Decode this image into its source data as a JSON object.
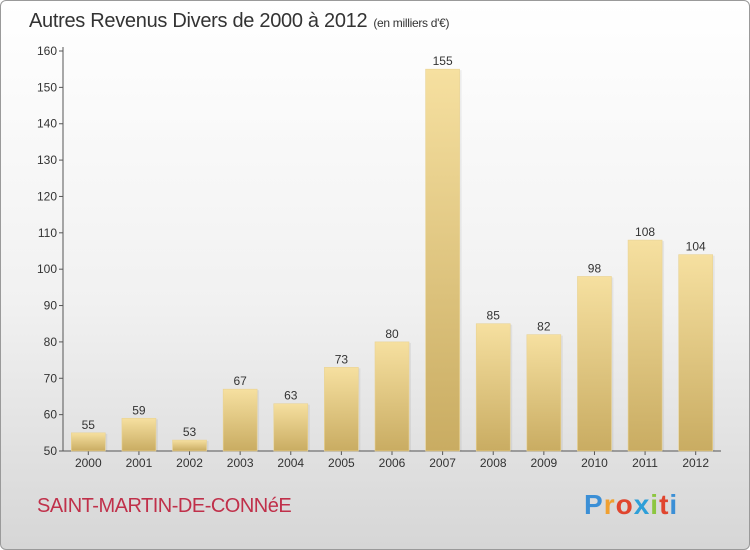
{
  "header": {
    "title": "Autres Revenus Divers de 2000 à 2012",
    "unit": "(en milliers d'€)"
  },
  "footer": {
    "city": "SAINT-MARTIN-DE-CONNéE",
    "logo": [
      "P",
      "r",
      "o",
      "x",
      "i",
      "t",
      "i"
    ]
  },
  "colors": {
    "bar_top": "#f6e0a0",
    "bar_bottom": "#c9ac62",
    "city": "#c0304a"
  },
  "chart_data": {
    "type": "bar",
    "title": "Autres Revenus Divers de 2000 à 2012",
    "subtitle": "(en milliers d'€)",
    "categories": [
      "2000",
      "2001",
      "2002",
      "2003",
      "2004",
      "2005",
      "2006",
      "2007",
      "2008",
      "2009",
      "2010",
      "2011",
      "2012"
    ],
    "values": [
      55,
      59,
      53,
      67,
      63,
      73,
      80,
      155,
      85,
      82,
      98,
      108,
      104
    ],
    "ylim": [
      50,
      160
    ],
    "yticks": [
      50,
      60,
      70,
      80,
      90,
      100,
      110,
      120,
      130,
      140,
      150,
      160
    ],
    "grid": false,
    "data_labels": true
  }
}
